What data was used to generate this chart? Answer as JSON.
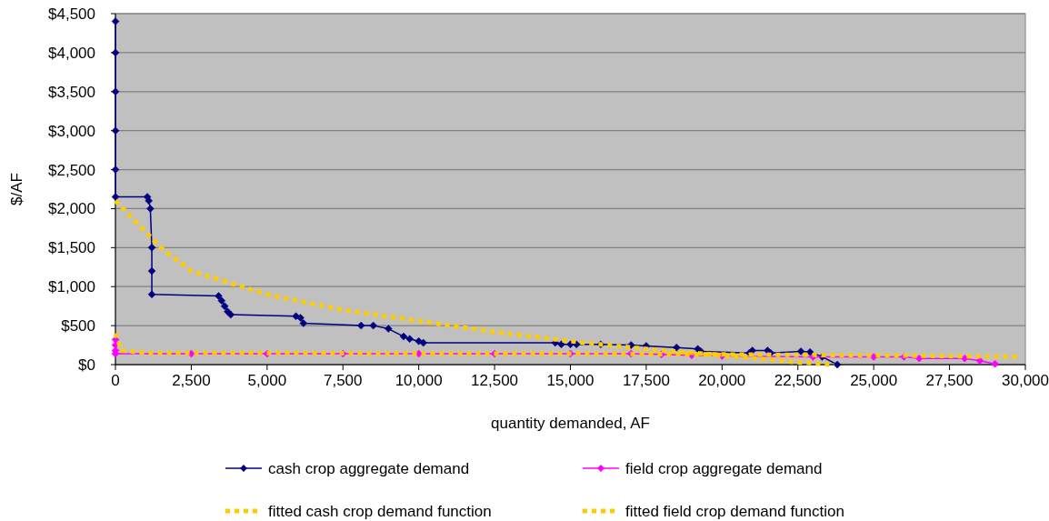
{
  "chart_data": {
    "type": "line",
    "xlabel": "quantity demanded, AF",
    "ylabel": "$/AF",
    "xlim": [
      0,
      30000
    ],
    "xticks": [
      {
        "value": 0,
        "label": "0"
      },
      {
        "value": 2500,
        "label": "2,500"
      },
      {
        "value": 5000,
        "label": "5,000"
      },
      {
        "value": 7500,
        "label": "7,500"
      },
      {
        "value": 10000,
        "label": "10,000"
      },
      {
        "value": 12500,
        "label": "12,500"
      },
      {
        "value": 15000,
        "label": "15,000"
      },
      {
        "value": 17500,
        "label": "17,500"
      },
      {
        "value": 20000,
        "label": "20,000"
      },
      {
        "value": 22500,
        "label": "22,500"
      },
      {
        "value": 25000,
        "label": "25,000"
      },
      {
        "value": 27500,
        "label": "27,500"
      },
      {
        "value": 30000,
        "label": "30,000"
      }
    ],
    "ylim": [
      0,
      4500
    ],
    "yticks": [
      {
        "value": 0,
        "label": "$0"
      },
      {
        "value": 500,
        "label": "$500"
      },
      {
        "value": 1000,
        "label": "$1,000"
      },
      {
        "value": 1500,
        "label": "$1,500"
      },
      {
        "value": 2000,
        "label": "$2,000"
      },
      {
        "value": 2500,
        "label": "$2,500"
      },
      {
        "value": 3000,
        "label": "$3,000"
      },
      {
        "value": 3500,
        "label": "$3,500"
      },
      {
        "value": 4000,
        "label": "$4,000"
      },
      {
        "value": 4500,
        "label": "$4,500"
      }
    ],
    "grid": "y",
    "legend": "bottom",
    "series": [
      {
        "name": "cash crop aggregate demand",
        "color": "#000080",
        "marker": "diamond",
        "line_style": "solid",
        "x": [
          0,
          0,
          0,
          0,
          0,
          0,
          1050,
          1100,
          1150,
          1200,
          1200,
          1200,
          3400,
          3500,
          3600,
          3700,
          3800,
          5950,
          6100,
          6200,
          8100,
          8500,
          9000,
          9500,
          9700,
          10000,
          10150,
          14500,
          14700,
          15000,
          15200,
          16000,
          17000,
          17500,
          18500,
          19200,
          19300,
          20900,
          21000,
          21500,
          21600,
          22500,
          22600,
          22900,
          23300,
          23800
        ],
        "values": [
          4400,
          4000,
          3500,
          3000,
          2500,
          2150,
          2150,
          2100,
          2000,
          1500,
          1200,
          900,
          880,
          820,
          750,
          680,
          640,
          620,
          600,
          530,
          500,
          500,
          460,
          360,
          330,
          300,
          280,
          280,
          260,
          260,
          260,
          260,
          250,
          240,
          220,
          200,
          170,
          150,
          180,
          180,
          150,
          null,
          170,
          160,
          100,
          0
        ]
      },
      {
        "name": "field crop aggregate demand",
        "color": "#ff00ff",
        "marker": "diamond",
        "line_style": "solid",
        "x": [
          0,
          0,
          0,
          0,
          2500,
          5000,
          7500,
          10000,
          12500,
          15000,
          17000,
          18000,
          19000,
          20000,
          21000,
          23000,
          25000,
          26000,
          26500,
          28000,
          28500,
          29000
        ],
        "values": [
          320,
          250,
          180,
          140,
          140,
          140,
          140,
          140,
          140,
          140,
          140,
          130,
          120,
          110,
          null,
          100,
          100,
          100,
          80,
          80,
          50,
          10
        ]
      },
      {
        "name": "fitted cash crop demand function",
        "color": "#ffcc00",
        "marker": "none",
        "line_style": "dotted",
        "x": [
          0,
          1000,
          1500,
          2500,
          5000,
          7500,
          10000,
          12500,
          15000,
          17500,
          20000,
          22500,
          23700
        ],
        "values": [
          2100,
          1700,
          1500,
          1200,
          900,
          700,
          560,
          420,
          300,
          200,
          120,
          30,
          0
        ]
      },
      {
        "name": "fitted field crop demand function",
        "color": "#ffcc00",
        "marker": "none",
        "line_style": "dotted",
        "x": [
          0,
          200,
          1000,
          5000,
          10000,
          15000,
          20000,
          25000,
          29800
        ],
        "values": [
          400,
          180,
          150,
          150,
          140,
          140,
          130,
          120,
          100
        ]
      }
    ]
  }
}
